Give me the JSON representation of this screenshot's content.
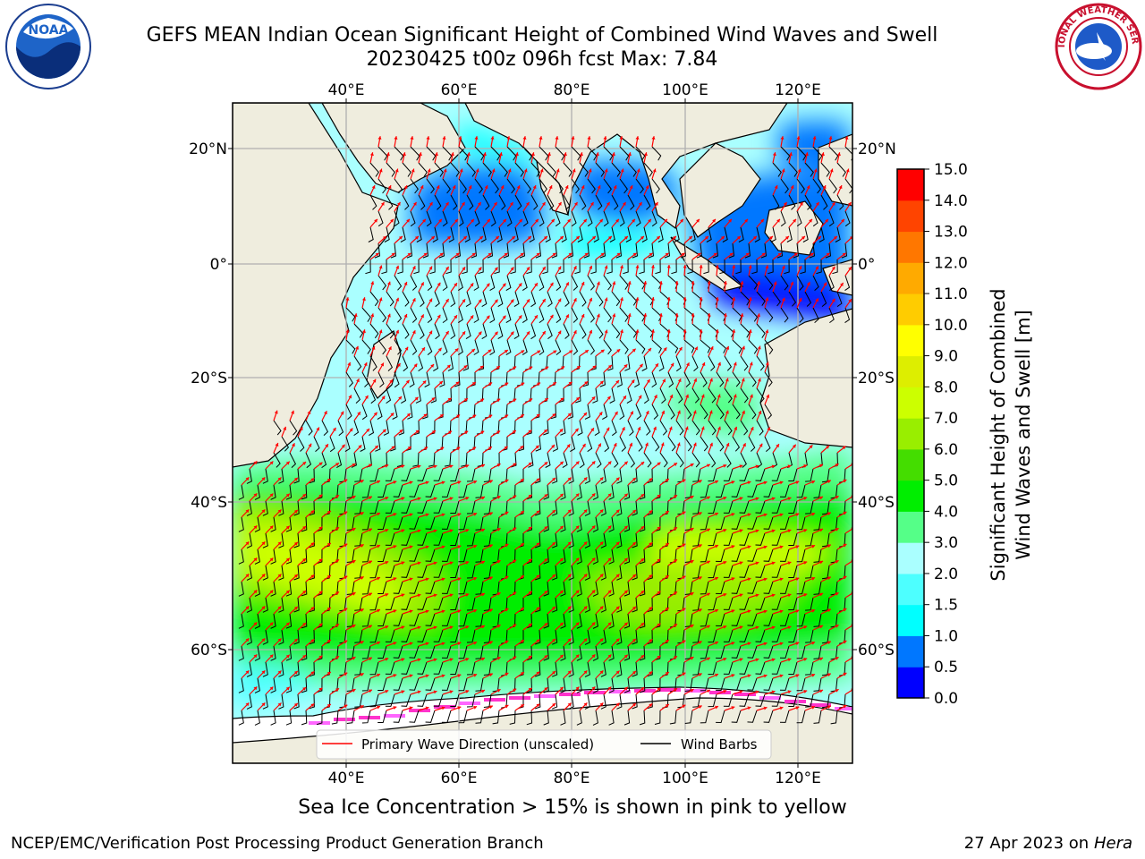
{
  "header": {
    "title_line1": "GEFS MEAN Indian Ocean Significant Height of Combined Wind Waves and Swell",
    "title_line2": "20230425 t00z 096h fcst   Max: 7.84"
  },
  "logos": {
    "left": {
      "name": "noaa-logo",
      "text": "NOAA"
    },
    "right": {
      "name": "national-weather-service-logo",
      "text": "NATIONAL WEATHER SERVICE"
    }
  },
  "map": {
    "lon_ticks": [
      "40°E",
      "60°E",
      "80°E",
      "100°E",
      "120°E"
    ],
    "lat_ticks_left": [
      "20°N",
      "0°",
      "20°S",
      "40°S",
      "60°S"
    ],
    "lat_ticks_right": [
      "20°N",
      "0°",
      "20°S",
      "40°S",
      "60°S"
    ],
    "legend": {
      "wave_direction": "Primary Wave Direction (unscaled)",
      "wind_barbs": "Wind Barbs"
    },
    "colors": {
      "land": "#efedde",
      "ice": "#ffffff",
      "arrow": "#ff0000",
      "barb": "#000000"
    }
  },
  "colorbar": {
    "label_line1": "Significant Height of Combined",
    "label_line2": "Wind Waves and Swell [m]",
    "levels": [
      "0.0",
      "0.5",
      "1.0",
      "1.5",
      "2.0",
      "3.0",
      "4.0",
      "5.0",
      "6.0",
      "7.0",
      "8.0",
      "9.0",
      "10.0",
      "11.0",
      "12.0",
      "13.0",
      "14.0",
      "15.0"
    ],
    "colors": [
      "#0000ff",
      "#0077ff",
      "#00ffff",
      "#4dffff",
      "#aaffff",
      "#55ff88",
      "#00ee00",
      "#44dd00",
      "#99ee00",
      "#ccff00",
      "#ddee00",
      "#ffff00",
      "#ffcc00",
      "#ffaa00",
      "#ff7700",
      "#ff4400",
      "#ff0000"
    ]
  },
  "caption": "Sea Ice Concentration > 15% is shown in pink to yellow",
  "footer": {
    "credit": "NCEP/EMC/Verification Post Processing Product Generation Branch",
    "date_prefix": "27 Apr 2023 on",
    "system": "Hera"
  }
}
